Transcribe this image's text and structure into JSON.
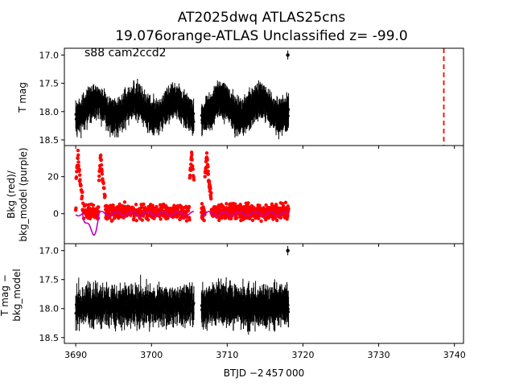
{
  "title_line1": "AT2025dwq  ATLAS25cns",
  "title_line2": "19.076orange-ATLAS Unclassified z= -99.0",
  "xlabel": "BTJD −2 457 000",
  "annotation": "s88 cam2ccd2",
  "colors": {
    "mag": "#000000",
    "bkg": "#ff0000",
    "bkg_model": "#bf00bf",
    "marker_line": "#ff0000"
  },
  "chart_data": [
    {
      "type": "scatter",
      "panel": "top",
      "ylabel": "T mag",
      "xlim": [
        3688.5,
        3741.2
      ],
      "ylim": [
        18.6,
        16.88
      ],
      "x_ticks": [
        3690,
        3700,
        3710,
        3720,
        3730,
        3740
      ],
      "y_ticks": [
        17.0,
        17.5,
        18.0,
        18.5
      ],
      "y_tick_labels": [
        "17.0",
        "17.5",
        "18.0",
        "18.5"
      ],
      "vertical_line": {
        "x": 3738.6,
        "style": "dashed",
        "color": "#ff0000"
      },
      "segments": [
        {
          "x_start": 3690.0,
          "x_end": 3705.6,
          "center": 17.95,
          "wave_amp": 0.25,
          "scatter": 0.2
        },
        {
          "x_start": 3706.6,
          "x_end": 3718.1,
          "center": 17.95,
          "wave_amp": 0.25,
          "scatter": 0.2
        }
      ],
      "outliers": [
        {
          "x": 3718.0,
          "y": 17.0
        }
      ]
    },
    {
      "type": "scatter",
      "panel": "middle",
      "ylabel_line1": "Bkg (red)/",
      "ylabel_line2": "bkg_model (purple)",
      "xlim": [
        3688.5,
        3741.2
      ],
      "ylim": [
        -16.2,
        36.8
      ],
      "y_ticks": [
        0,
        20
      ],
      "y_tick_labels": [
        "0",
        "20"
      ],
      "series": [
        {
          "name": "Bkg",
          "color": "#ff0000"
        },
        {
          "name": "bkg_model",
          "color": "#bf00bf"
        }
      ],
      "spikes": [
        {
          "x": 3690.3,
          "peak": 32
        },
        {
          "x": 3693.3,
          "peak": 32
        },
        {
          "x": 3705.3,
          "peak": 33
        },
        {
          "x": 3707.3,
          "peak": 33
        }
      ],
      "segments": [
        {
          "x_start": 3690.0,
          "x_end": 3705.6
        },
        {
          "x_start": 3706.6,
          "x_end": 3718.1
        }
      ]
    },
    {
      "type": "scatter",
      "panel": "bottom",
      "ylabel_line1": "T mag −",
      "ylabel_line2": "bkg_model",
      "xlim": [
        3688.5,
        3741.2
      ],
      "ylim": [
        18.6,
        16.88
      ],
      "y_ticks": [
        17.0,
        17.5,
        18.0,
        18.5
      ],
      "y_tick_labels": [
        "17.0",
        "17.5",
        "18.0",
        "18.5"
      ],
      "segments": [
        {
          "x_start": 3690.0,
          "x_end": 3705.6,
          "center": 17.95,
          "scatter": 0.3
        },
        {
          "x_start": 3706.6,
          "x_end": 3718.1,
          "center": 17.95,
          "scatter": 0.3
        }
      ],
      "outliers": [
        {
          "x": 3718.0,
          "y": 17.0
        }
      ]
    }
  ]
}
